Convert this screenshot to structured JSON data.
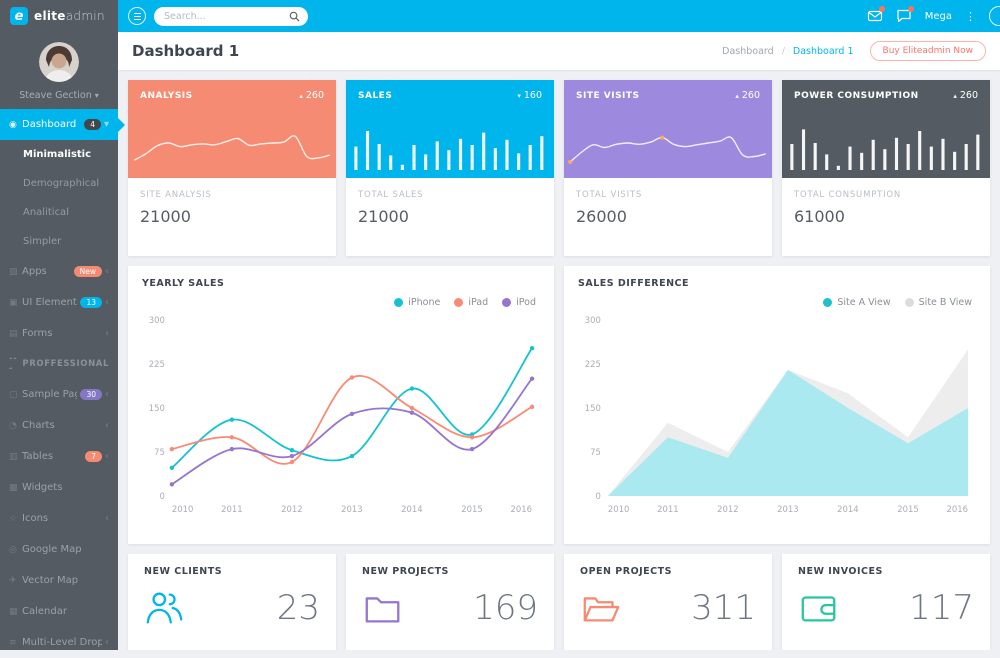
{
  "app": {
    "logo_letter": "e",
    "brand_bold": "elite",
    "brand_light": "admin"
  },
  "topbar": {
    "search_placeholder": "Search...",
    "mega_label": "Mega"
  },
  "user": {
    "name": "Steave Gection"
  },
  "page": {
    "title": "Dashboard 1",
    "breadcrumb_root": "Dashboard",
    "breadcrumb_sep": "/",
    "breadcrumb_current": "Dashboard 1",
    "buy_button": "Buy Eliteadmin Now"
  },
  "colors": {
    "accent": "#00b5ec",
    "salmon": "#f58b72",
    "purple": "#9d8adf",
    "dark": "#545b62",
    "green": "#26c6a0"
  },
  "sidebar": {
    "section_prefix": "---",
    "items": [
      {
        "label": "Dashboard",
        "icon": "gauge-icon",
        "glyph": "◉",
        "badge": {
          "text": "4",
          "bg": "#41474d"
        },
        "chevron": "down",
        "active": true
      },
      {
        "label": "Minimalistic",
        "sub": true,
        "selected": true
      },
      {
        "label": "Demographical",
        "sub": true
      },
      {
        "label": "Analitical",
        "sub": true
      },
      {
        "label": "Simpler",
        "sub": true
      },
      {
        "label": "Apps",
        "icon": "apps-icon",
        "glyph": "▧",
        "badge": {
          "text": "New",
          "bg": "#f58b72"
        },
        "chevron": "left"
      },
      {
        "label": "UI Elements",
        "icon": "layers-icon",
        "glyph": "▣",
        "badge": {
          "text": "13",
          "bg": "#00b5ec"
        },
        "chevron": "left"
      },
      {
        "label": "Forms",
        "icon": "form-icon",
        "glyph": "▤",
        "chevron": "left"
      },
      {
        "label": "PROFFESSIONAL",
        "section": true
      },
      {
        "label": "Sample Pages",
        "icon": "pages-icon",
        "glyph": "▢",
        "badge": {
          "text": "30",
          "bg": "#8677c6"
        },
        "chevron": "left"
      },
      {
        "label": "Charts",
        "icon": "chart-icon",
        "glyph": "◔",
        "chevron": "left"
      },
      {
        "label": "Tables",
        "icon": "table-icon",
        "glyph": "▥",
        "badge": {
          "text": "7",
          "bg": "#f58b72"
        },
        "chevron": "left"
      },
      {
        "label": "Widgets",
        "icon": "widgets-icon",
        "glyph": "▩"
      },
      {
        "label": "Icons",
        "icon": "star-icon",
        "glyph": "☆",
        "chevron": "left"
      },
      {
        "label": "Google Map",
        "icon": "map-icon",
        "glyph": "◎"
      },
      {
        "label": "Vector Map",
        "icon": "plane-icon",
        "glyph": "✈"
      },
      {
        "label": "Calendar",
        "icon": "calendar-icon",
        "glyph": "▦"
      },
      {
        "label": "Multi-Level Dropdown",
        "icon": "list-icon",
        "glyph": "≡",
        "chevron": "left"
      }
    ]
  },
  "stat_cards": [
    {
      "title": "ANALYSIS",
      "trend_dir": "up",
      "trend_value": "260",
      "color": "#f58b72",
      "label": "SITE ANALYSIS",
      "value": "21000",
      "spark": {
        "type": "line",
        "values": [
          22,
          36,
          54,
          60,
          52,
          56,
          58,
          56,
          63,
          70,
          55,
          58,
          60,
          62,
          75,
          30,
          27,
          33
        ]
      }
    },
    {
      "title": "SALES",
      "trend_dir": "down",
      "trend_value": "160",
      "color": "#00b5ec",
      "label": "TOTAL SALES",
      "value": "21000",
      "spark": {
        "type": "bar",
        "values": [
          45,
          75,
          50,
          28,
          10,
          48,
          30,
          55,
          38,
          60,
          48,
          72,
          42,
          58,
          32,
          48,
          65
        ]
      }
    },
    {
      "title": "SITE VISITS",
      "trend_dir": "up",
      "trend_value": "260",
      "color": "#9d8adf",
      "label": "TOTAL VISITS",
      "value": "26000",
      "spark": {
        "type": "line",
        "values": [
          18,
          40,
          56,
          50,
          57,
          60,
          57,
          62,
          72,
          57,
          52,
          56,
          60,
          64,
          72,
          33,
          30,
          36
        ],
        "markers": [
          0,
          8
        ],
        "marker_color": "#ffab5e"
      }
    },
    {
      "title": "POWER CONSUMPTION",
      "trend_dir": "up",
      "trend_value": "260",
      "color": "#545b62",
      "label": "TOTAL CONSUMPTION",
      "value": "61000",
      "spark": {
        "type": "bar",
        "values": [
          50,
          78,
          52,
          30,
          8,
          45,
          33,
          58,
          40,
          62,
          50,
          75,
          45,
          60,
          35,
          50,
          68
        ]
      }
    }
  ],
  "chart_data": [
    {
      "id": "yearly_sales",
      "type": "line",
      "title": "YEARLY SALES",
      "x": [
        "2010",
        "2011",
        "2012",
        "2013",
        "2014",
        "2015",
        "2016"
      ],
      "ylim": [
        0,
        300
      ],
      "yticks": [
        0,
        75,
        150,
        225,
        300
      ],
      "grid": false,
      "legend_position": "top-right",
      "series": [
        {
          "name": "iPhone",
          "color": "#15c3ce",
          "values": [
            48,
            130,
            78,
            68,
            183,
            105,
            252
          ]
        },
        {
          "name": "iPad",
          "color": "#fa8a75",
          "values": [
            80,
            100,
            58,
            202,
            150,
            100,
            152
          ]
        },
        {
          "name": "iPod",
          "color": "#9675ce",
          "values": [
            20,
            80,
            68,
            140,
            142,
            80,
            200
          ]
        }
      ]
    },
    {
      "id": "sales_difference",
      "type": "area",
      "title": "SALES DIFFERENCE",
      "x": [
        "2010",
        "2011",
        "2012",
        "2013",
        "2014",
        "2015",
        "2016"
      ],
      "ylim": [
        0,
        300
      ],
      "yticks": [
        0,
        75,
        150,
        225,
        300
      ],
      "grid": false,
      "legend_position": "top-right",
      "series": [
        {
          "name": "Site A View",
          "color": "#a7e9ef",
          "dot": "#1bc3c9",
          "values": [
            0,
            100,
            65,
            215,
            150,
            90,
            150
          ]
        },
        {
          "name": "Site B View",
          "color": "#ececec",
          "dot": "#dcdcdc",
          "values": [
            0,
            125,
            75,
            215,
            175,
            100,
            250
          ]
        }
      ]
    }
  ],
  "bottom_cards": [
    {
      "label": "NEW CLIENTS",
      "value": "23",
      "icon": "users-icon",
      "color": "#00b5ec"
    },
    {
      "label": "NEW PROJECTS",
      "value": "169",
      "icon": "folder-icon",
      "color": "#9675ce"
    },
    {
      "label": "OPEN PROJECTS",
      "value": "311",
      "icon": "folder-open-icon",
      "color": "#f58b72"
    },
    {
      "label": "NEW INVOICES",
      "value": "117",
      "icon": "wallet-icon",
      "color": "#26c6a0"
    }
  ]
}
